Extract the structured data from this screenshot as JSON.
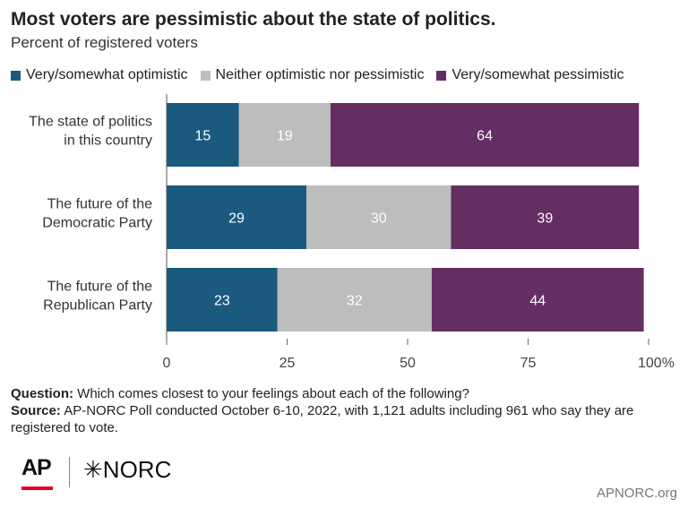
{
  "title": "Most voters are pessimistic about the state of politics.",
  "subtitle": "Percent of registered voters",
  "legend": [
    {
      "label": "Very/somewhat optimistic",
      "color": "#1a5a7e"
    },
    {
      "label": "Neither optimistic nor pessimistic",
      "color": "#bdbdbd"
    },
    {
      "label": "Very/somewhat pessimistic",
      "color": "#652e62"
    }
  ],
  "footer": {
    "question_label": "Question:",
    "question_text": "Which comes closest to your feelings about each of the following?",
    "source_label": "Source:",
    "source_text": "AP-NORC Poll conducted October 6-10, 2022, with 1,121 adults including 961 who say they are registered to vote."
  },
  "logos": {
    "ap": "AP",
    "norc": "NORC",
    "site": "APNORC.org"
  },
  "chart_data": {
    "type": "bar",
    "orientation": "horizontal",
    "stacked": true,
    "categories": [
      [
        "The state of politics",
        "in this country"
      ],
      [
        "The future of the",
        "Democratic Party"
      ],
      [
        "The future of the",
        "Republican Party"
      ]
    ],
    "series": [
      {
        "name": "Very/somewhat optimistic",
        "values": [
          15,
          29,
          23
        ],
        "color": "#1a5a7e"
      },
      {
        "name": "Neither optimistic nor pessimistic",
        "values": [
          19,
          30,
          32
        ],
        "color": "#bdbdbd"
      },
      {
        "name": "Very/somewhat pessimistic",
        "values": [
          64,
          39,
          44
        ],
        "color": "#652e62"
      }
    ],
    "xlim": [
      0,
      100
    ],
    "xticks": [
      0,
      25,
      50,
      75,
      100
    ],
    "xtick_labels": [
      "0",
      "25",
      "50",
      "75",
      "100%"
    ],
    "grid": false,
    "legend_position": "top"
  }
}
